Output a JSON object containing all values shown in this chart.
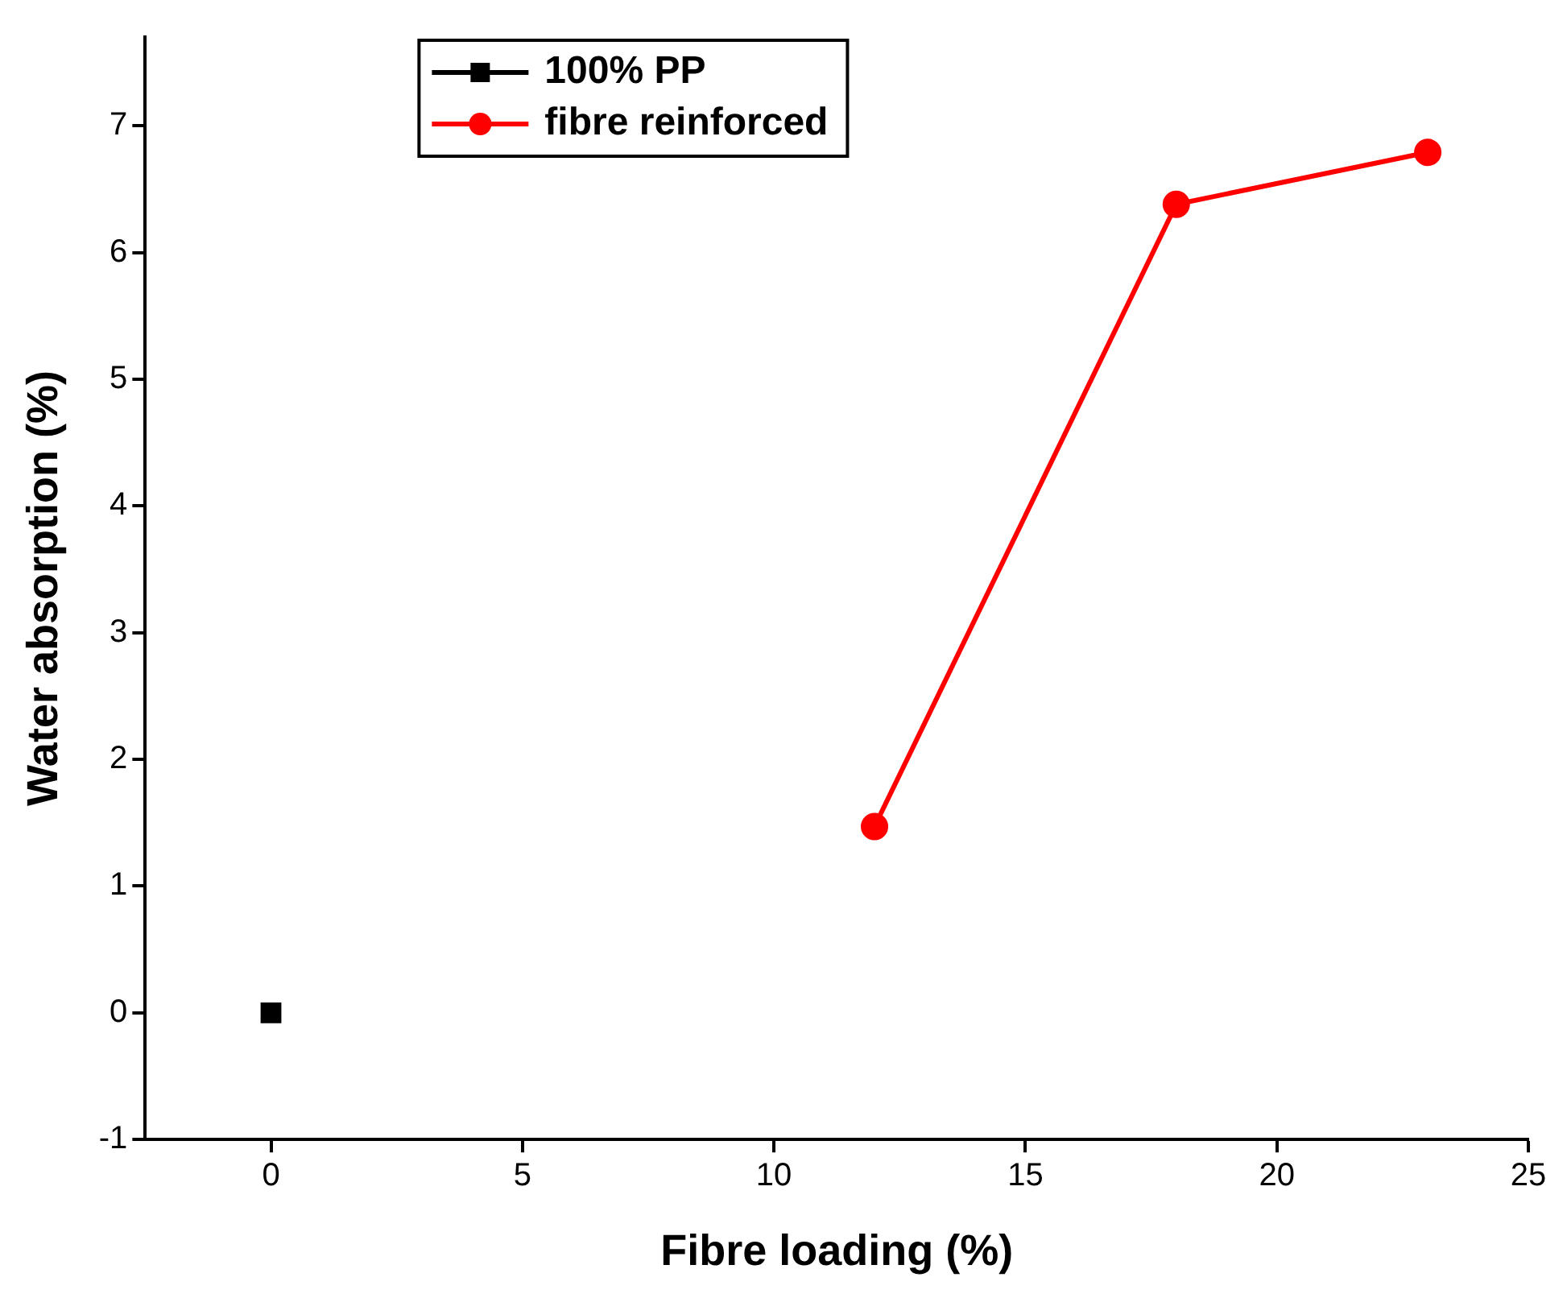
{
  "chart_data": {
    "type": "line",
    "xlabel": "Fibre loading (%)",
    "ylabel": "Water absorption (%)",
    "xlim": [
      -2.5,
      25
    ],
    "xticks": [
      0,
      5,
      10,
      15,
      20,
      25
    ],
    "ylim": [
      -1,
      7.7
    ],
    "yticks": [
      -1,
      0,
      1,
      2,
      3,
      4,
      5,
      6,
      7
    ],
    "grid": false,
    "legend": "top left",
    "line_style": "solid",
    "series": [
      {
        "name": "100% PP",
        "color": "#000000",
        "marker": "square",
        "x": [
          0
        ],
        "values": [
          0
        ]
      },
      {
        "name": "fibre reinforced",
        "color": "#ff0000",
        "marker": "circle",
        "x": [
          12,
          18,
          23
        ],
        "values": [
          1.47,
          6.38,
          6.79
        ]
      }
    ]
  }
}
